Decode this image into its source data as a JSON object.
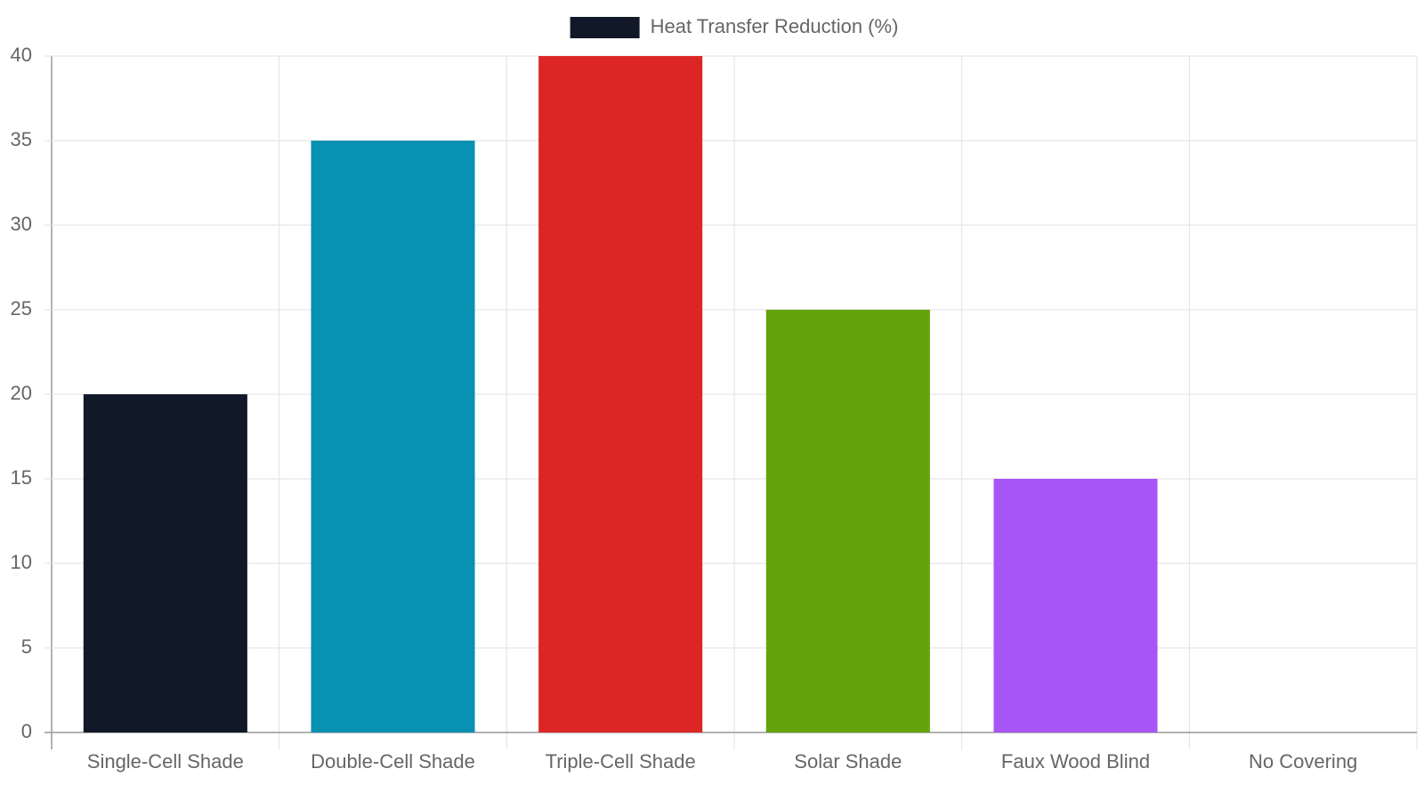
{
  "chart_data": {
    "type": "bar",
    "categories": [
      "Single-Cell Shade",
      "Double-Cell Shade",
      "Triple-Cell Shade",
      "Solar Shade",
      "Faux Wood Blind",
      "No Covering"
    ],
    "series": [
      {
        "name": "Heat Transfer Reduction (%)",
        "colors": [
          "#111827",
          "#0891b2",
          "#dc2626",
          "#65a30d",
          "#a855f7",
          "#6b7280"
        ],
        "values": [
          20,
          35,
          40,
          25,
          15,
          0
        ]
      }
    ],
    "ylim": [
      0,
      40
    ],
    "yticks": [
      0,
      5,
      10,
      15,
      20,
      25,
      30,
      35,
      40
    ],
    "grid": true,
    "legend": "top"
  }
}
